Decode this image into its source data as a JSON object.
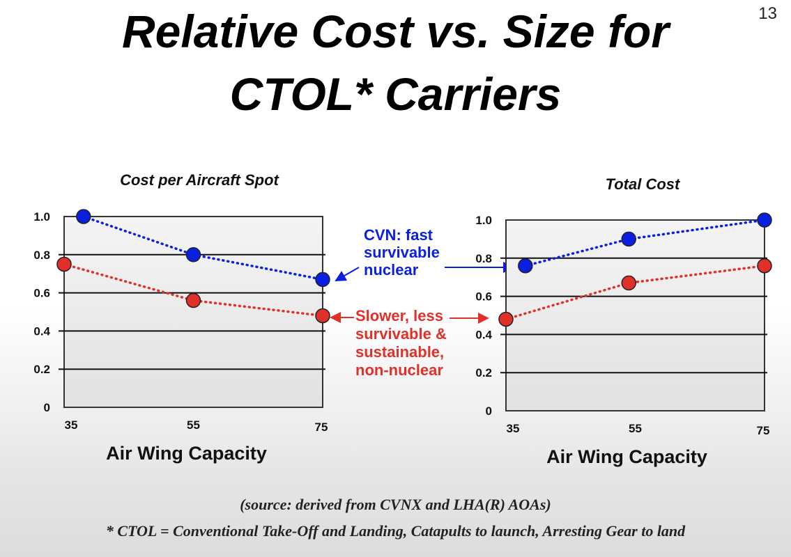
{
  "slide": {
    "title_line1": "Relative Cost vs. Size for",
    "title_line2": "CTOL* Carriers",
    "page_number": "13",
    "source": "(source: derived from CVNX and LHA(R) AOAs)",
    "footnote": "* CTOL = Conventional Take-Off and Landing,  Catapults to launch,  Arresting Gear to land"
  },
  "annotations": {
    "cvn": [
      "CVN: fast",
      "survivable",
      "nuclear"
    ],
    "non_nuclear": [
      "Slower, less",
      "survivable &",
      "sustainable,",
      "non-nuclear"
    ],
    "cvn_color": "#0a1fe0",
    "non_nuclear_color": "#e0302a"
  },
  "chart_data": [
    {
      "type": "line",
      "title": "Cost per Aircraft Spot",
      "xlabel": "Air Wing Capacity",
      "ylabel": "",
      "xticks": [
        "35",
        "55",
        "75"
      ],
      "yticks": [
        "0",
        "0.2",
        "0.4",
        "0.6",
        "0.8",
        "1.0"
      ],
      "xlim": [
        35,
        75
      ],
      "ylim": [
        0,
        1.0
      ],
      "grid": "horizontal",
      "series": [
        {
          "x": [
            38,
            55,
            75
          ],
          "y": [
            1.0,
            0.8,
            0.67
          ],
          "color": "#0a1fe0",
          "style": "dotted"
        },
        {
          "x": [
            35,
            55,
            75
          ],
          "y": [
            0.75,
            0.56,
            0.48
          ],
          "color": "#e0302a",
          "style": "dotted"
        }
      ]
    },
    {
      "type": "line",
      "title": "Total Cost",
      "xlabel": "Air Wing Capacity",
      "ylabel": "",
      "xticks": [
        "35",
        "55",
        "75"
      ],
      "yticks": [
        "0",
        "0.2",
        "0.4",
        "0.6",
        "0.8",
        "1.0"
      ],
      "xlim": [
        35,
        75
      ],
      "ylim": [
        0,
        1.0
      ],
      "grid": "horizontal",
      "series": [
        {
          "x": [
            38,
            54,
            75
          ],
          "y": [
            0.76,
            0.9,
            1.0
          ],
          "color": "#0a1fe0",
          "style": "dotted"
        },
        {
          "x": [
            35,
            54,
            75
          ],
          "y": [
            0.48,
            0.67,
            0.76
          ],
          "color": "#e0302a",
          "style": "dotted"
        }
      ]
    }
  ]
}
